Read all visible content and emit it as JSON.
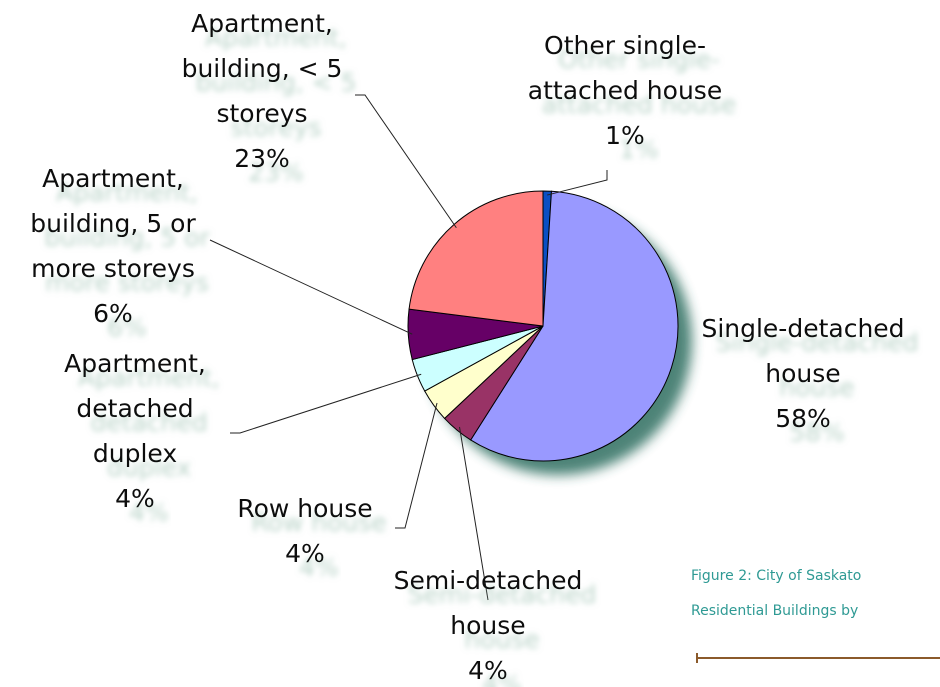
{
  "chart_data": {
    "type": "pie",
    "slices": [
      {
        "label": [
          "Other single-",
          "attached house"
        ],
        "value": 1,
        "value_label": "1%",
        "color": "#0a4fc4"
      },
      {
        "label": [
          "Single-detached",
          "house"
        ],
        "value": 58,
        "value_label": "58%",
        "color": "#9999ff"
      },
      {
        "label": [
          "Semi-detached",
          "house"
        ],
        "value": 4,
        "value_label": "4%",
        "color": "#993366"
      },
      {
        "label": [
          "Row house"
        ],
        "value": 4,
        "value_label": "4%",
        "color": "#ffffcc"
      },
      {
        "label": [
          "Apartment,",
          "detached",
          "duplex"
        ],
        "value": 4,
        "value_label": "4%",
        "color": "#ccffff"
      },
      {
        "label": [
          "Apartment,",
          "building, 5 or",
          "more storeys"
        ],
        "value": 6,
        "value_label": "6%",
        "color": "#660066"
      },
      {
        "label": [
          "Apartment,",
          "building, < 5",
          "storeys"
        ],
        "value": 23,
        "value_label": "23%",
        "color": "#ff8080"
      }
    ],
    "caption": [
      "Figure 2:  City of Saskato",
      "Residential Buildings by"
    ]
  }
}
